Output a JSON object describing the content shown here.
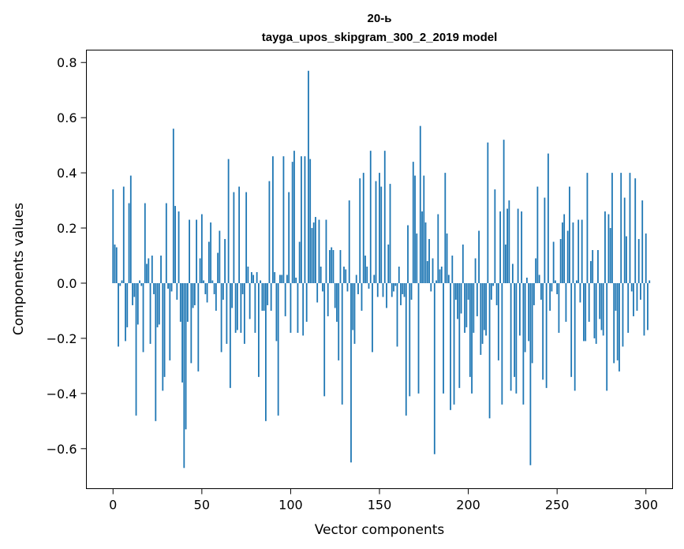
{
  "chart_data": {
    "type": "bar",
    "title_lines": [
      "20-ь",
      "tayga_upos_skipgram_300_2_2019 model"
    ],
    "xlabel": "Vector components",
    "ylabel": "Components values",
    "xlim": [
      -15,
      315
    ],
    "ylim": [
      -0.745,
      0.845
    ],
    "xticks": [
      0,
      50,
      100,
      150,
      200,
      250,
      300
    ],
    "xtick_labels": [
      "0",
      "50",
      "100",
      "150",
      "200",
      "250",
      "300"
    ],
    "yticks": [
      -0.6,
      -0.4,
      -0.2,
      0.0,
      0.2,
      0.4,
      0.6,
      0.8
    ],
    "ytick_labels": [
      "−0.6",
      "−0.4",
      "−0.2",
      "0.0",
      "0.2",
      "0.4",
      "0.6",
      "0.8"
    ],
    "bar_color": "#1f77b4",
    "values": [
      0.34,
      0.14,
      0.13,
      -0.23,
      -0.01,
      0.01,
      0.35,
      -0.21,
      -0.16,
      0.29,
      0.39,
      -0.08,
      -0.05,
      -0.48,
      -0.15,
      0.01,
      -0.01,
      -0.25,
      0.29,
      0.07,
      0.09,
      -0.22,
      0.1,
      -0.04,
      -0.5,
      -0.16,
      -0.15,
      0.1,
      -0.39,
      -0.34,
      0.29,
      -0.02,
      -0.28,
      -0.03,
      0.56,
      0.28,
      -0.06,
      0.26,
      -0.14,
      -0.36,
      -0.67,
      -0.53,
      -0.14,
      0.23,
      -0.29,
      -0.09,
      -0.08,
      0.23,
      -0.32,
      0.09,
      0.25,
      0.01,
      -0.04,
      -0.07,
      0.15,
      0.22,
      0.01,
      -0.04,
      -0.1,
      0.11,
      0.19,
      -0.25,
      -0.06,
      0.16,
      -0.22,
      0.45,
      -0.38,
      -0.09,
      0.33,
      -0.18,
      -0.17,
      0.35,
      -0.18,
      -0.04,
      -0.22,
      0.33,
      0.06,
      -0.13,
      0.04,
      0.03,
      -0.18,
      0.04,
      -0.34,
      0.01,
      -0.1,
      -0.1,
      -0.5,
      -0.08,
      0.37,
      -0.1,
      0.46,
      0.04,
      -0.21,
      -0.48,
      0.03,
      0.03,
      0.46,
      -0.12,
      0.03,
      0.33,
      -0.18,
      0.44,
      0.48,
      0.02,
      -0.18,
      0.15,
      0.46,
      -0.19,
      0.46,
      -0.14,
      0.77,
      0.45,
      0.2,
      0.22,
      0.24,
      -0.07,
      0.23,
      0.06,
      -0.03,
      -0.41,
      0.23,
      -0.12,
      0.12,
      0.13,
      0.12,
      -0.09,
      -0.14,
      -0.28,
      0.12,
      -0.44,
      0.06,
      0.05,
      -0.03,
      0.3,
      -0.65,
      -0.17,
      -0.22,
      0.03,
      -0.04,
      0.38,
      -0.1,
      0.4,
      0.1,
      0.06,
      -0.02,
      0.48,
      -0.25,
      0.03,
      0.37,
      -0.05,
      0.4,
      0.35,
      -0.05,
      0.48,
      -0.09,
      0.14,
      0.36,
      -0.05,
      -0.03,
      -0.01,
      -0.23,
      0.06,
      -0.08,
      -0.04,
      -0.05,
      -0.48,
      0.21,
      -0.41,
      -0.06,
      0.44,
      0.39,
      0.18,
      -0.4,
      0.57,
      0.26,
      0.39,
      0.22,
      0.08,
      0.16,
      -0.03,
      0.09,
      -0.62,
      0.01,
      0.25,
      0.05,
      0.06,
      -0.4,
      0.4,
      0.18,
      0.03,
      -0.46,
      0.1,
      -0.44,
      -0.06,
      -0.13,
      -0.38,
      -0.11,
      0.14,
      -0.18,
      -0.16,
      -0.06,
      -0.34,
      -0.4,
      -0.18,
      0.09,
      -0.12,
      0.19,
      -0.26,
      -0.22,
      -0.17,
      -0.19,
      0.51,
      -0.49,
      -0.06,
      -0.01,
      0.34,
      -0.08,
      -0.28,
      0.26,
      -0.44,
      0.52,
      0.14,
      0.27,
      0.3,
      -0.39,
      0.07,
      -0.34,
      -0.4,
      0.27,
      -0.19,
      0.26,
      -0.44,
      -0.25,
      0.02,
      -0.21,
      -0.66,
      -0.29,
      -0.08,
      0.09,
      0.35,
      0.03,
      -0.06,
      -0.35,
      0.31,
      -0.38,
      0.47,
      -0.1,
      -0.03,
      0.15,
      0.01,
      -0.04,
      -0.18,
      0.16,
      0.22,
      0.25,
      -0.14,
      0.19,
      0.35,
      -0.34,
      0.22,
      -0.39,
      0.01,
      0.23,
      -0.07,
      0.23,
      -0.21,
      -0.21,
      0.4,
      -0.14,
      0.08,
      0.12,
      -0.2,
      -0.22,
      0.12,
      -0.13,
      -0.17,
      -0.19,
      0.26,
      -0.39,
      0.25,
      0.2,
      0.4,
      -0.29,
      -0.1,
      -0.28,
      -0.32,
      0.4,
      -0.23,
      0.31,
      0.17,
      -0.18,
      0.4,
      -0.03,
      -0.12,
      0.38,
      -0.1,
      0.16,
      -0.06,
      0.3,
      -0.19,
      0.18,
      -0.17,
      0.01
    ]
  }
}
